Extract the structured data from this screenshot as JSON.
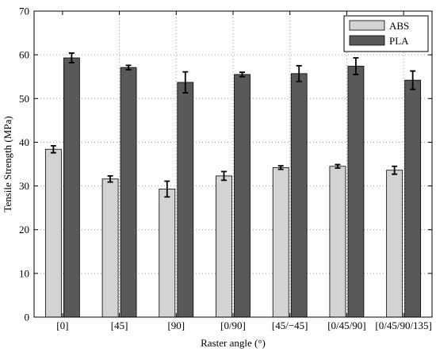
{
  "chart_data": {
    "type": "bar",
    "xlabel": "Raster angle (°)",
    "ylabel": "Tensile Strength (MPa)",
    "ylim": [
      0,
      70
    ],
    "yticks": [
      0,
      10,
      20,
      30,
      40,
      50,
      60,
      70
    ],
    "grid": true,
    "legend_position": "top-right",
    "categories": [
      "[0]",
      "[45]",
      "[90]",
      "[0/90]",
      "[45/−45]",
      "[0/45/90]",
      "[0/45/90/135]"
    ],
    "series": [
      {
        "name": "ABS",
        "color": "#d3d3d3",
        "values": [
          38.4,
          31.6,
          29.3,
          32.3,
          34.2,
          34.5,
          33.6
        ],
        "errors": [
          0.8,
          0.7,
          1.8,
          1.0,
          0.4,
          0.4,
          0.9
        ]
      },
      {
        "name": "PLA",
        "color": "#595959",
        "values": [
          59.3,
          57.1,
          53.7,
          55.5,
          55.7,
          57.4,
          54.2
        ],
        "errors": [
          1.1,
          0.5,
          2.4,
          0.5,
          1.8,
          1.9,
          2.1
        ]
      }
    ]
  }
}
